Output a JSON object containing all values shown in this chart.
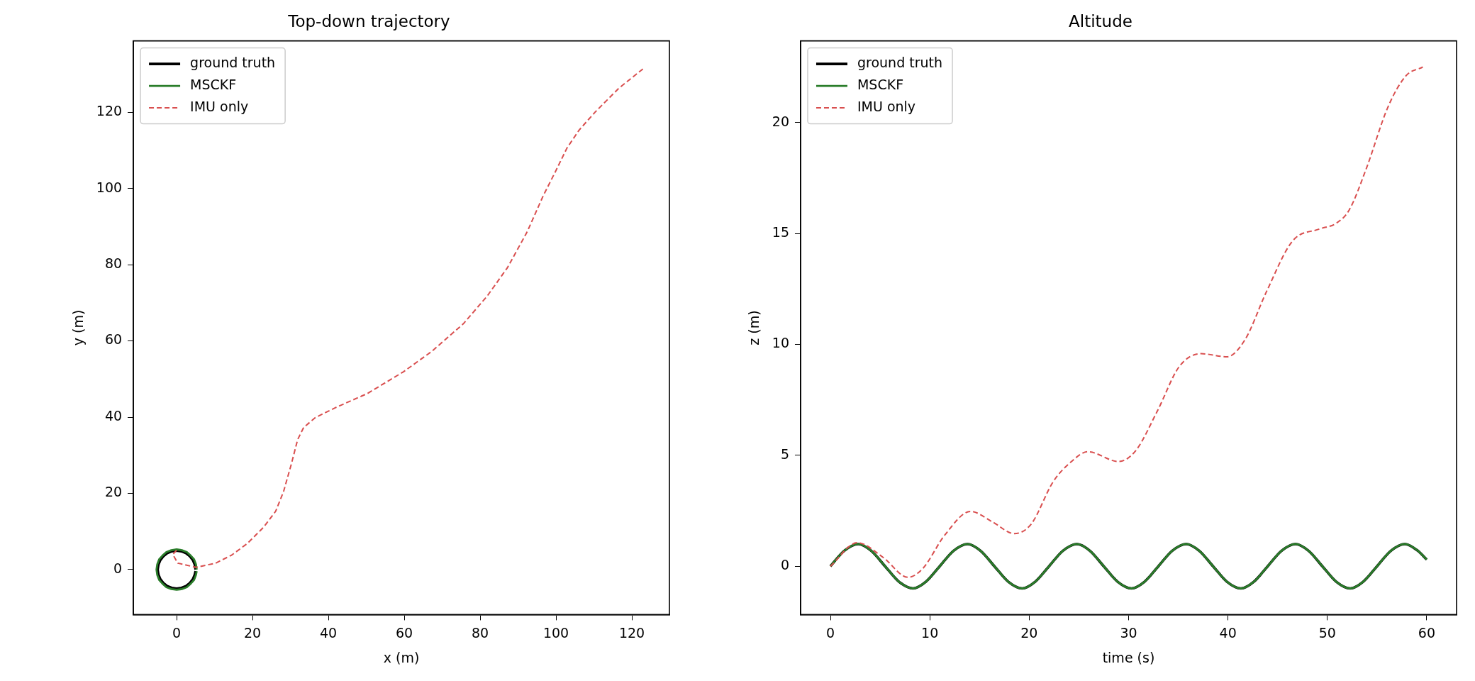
{
  "chart_data": [
    {
      "type": "line",
      "title": "Top-down trajectory",
      "xlabel": "x (m)",
      "ylabel": "y (m)",
      "xlim": [
        -11.4,
        129.9
      ],
      "ylim": [
        -11.8,
        138.7
      ],
      "xticks": [
        0,
        20,
        40,
        60,
        80,
        100,
        120
      ],
      "yticks": [
        0,
        20,
        40,
        60,
        80,
        100,
        120
      ],
      "grid": false,
      "legend": "top left",
      "series": [
        {
          "name": "ground truth",
          "color": "#000000",
          "line_style": "solid",
          "x": [
            5,
            4.8,
            4.3,
            3.5,
            2.5,
            1.3,
            0,
            -1.3,
            -2.5,
            -3.5,
            -4.3,
            -4.8,
            -5,
            -4.8,
            -4.3,
            -3.5,
            -2.5,
            -1.3,
            0,
            1.3,
            2.5,
            3.5,
            4.3,
            4.8,
            5
          ],
          "values": [
            0,
            1.3,
            2.5,
            3.5,
            4.3,
            4.8,
            5,
            4.8,
            4.3,
            3.5,
            2.5,
            1.3,
            0,
            -1.3,
            -2.5,
            -3.5,
            -4.3,
            -4.8,
            -5,
            -4.8,
            -4.3,
            -3.5,
            -2.5,
            -1.3,
            -0.4
          ]
        },
        {
          "name": "MSCKF",
          "color": "#2a7d2a",
          "line_style": "solid",
          "x": [
            5.3,
            5.1,
            4.6,
            3.7,
            2.7,
            1.4,
            0,
            -1.4,
            -2.7,
            -3.7,
            -4.6,
            -5.1,
            -5.3,
            -5.1,
            -4.6,
            -3.7,
            -2.7,
            -1.4,
            0,
            1.4,
            2.7,
            3.7,
            4.6,
            5.1,
            5.3
          ],
          "values": [
            0,
            1.4,
            2.7,
            3.7,
            4.6,
            5.1,
            5.3,
            5.1,
            4.6,
            3.7,
            2.7,
            1.4,
            0,
            -1.4,
            -2.7,
            -3.7,
            -4.6,
            -5.1,
            -5.3,
            -5.1,
            -4.6,
            -3.7,
            -2.7,
            -1.4,
            -0.4
          ]
        },
        {
          "name": "IMU only",
          "color": "#d94f4f",
          "line_style": "dashed",
          "x": [
            0,
            -1,
            0.3,
            5.1,
            10.3,
            14.5,
            18.7,
            22.9,
            26.1,
            28.2,
            30.3,
            31.9,
            33.5,
            36.6,
            41.9,
            50.3,
            59.8,
            67.2,
            75.6,
            81.9,
            87.2,
            92.4,
            96.6,
            99.8,
            102.9,
            106.1,
            110.3,
            116.6,
            123.5
          ],
          "values": [
            5.1,
            4,
            1.7,
            0.6,
            1.7,
            3.8,
            6.9,
            11.1,
            15.3,
            20.5,
            27.9,
            34.1,
            37.3,
            39.9,
            42.5,
            46.2,
            51.9,
            57.2,
            64.5,
            71.8,
            79.2,
            88.6,
            98,
            104.3,
            110.6,
            115.3,
            120,
            126.3,
            131.8
          ]
        }
      ]
    },
    {
      "type": "line",
      "title": "Altitude",
      "xlabel": "time (s)",
      "ylabel": "z (m)",
      "xlim": [
        -3,
        63
      ],
      "ylim": [
        -2.18,
        23.68
      ],
      "xticks": [
        0,
        10,
        20,
        30,
        40,
        50,
        60
      ],
      "yticks": [
        0,
        5,
        10,
        15,
        20
      ],
      "grid": false,
      "legend": "top left",
      "series": [
        {
          "name": "ground truth",
          "color": "#000000",
          "line_style": "solid",
          "x": [
            0,
            1.4,
            2.8,
            4.1,
            5.5,
            6.9,
            8.3,
            9.6,
            11,
            12.4,
            13.8,
            15.1,
            16.5,
            17.9,
            19.3,
            20.6,
            22,
            23.4,
            24.8,
            26.1,
            27.5,
            28.9,
            30.3,
            31.6,
            33,
            34.4,
            35.8,
            37.1,
            38.5,
            39.9,
            41.3,
            42.6,
            44,
            45.4,
            46.8,
            48.1,
            49.5,
            50.9,
            52.3,
            53.6,
            55,
            56.4,
            57.8,
            59.1,
            60
          ],
          "values": [
            0,
            0.7,
            1,
            0.7,
            0,
            -0.7,
            -1,
            -0.7,
            0,
            0.7,
            1,
            0.7,
            0,
            -0.7,
            -1,
            -0.7,
            0,
            0.7,
            1,
            0.7,
            0,
            -0.7,
            -1,
            -0.7,
            0,
            0.7,
            1,
            0.7,
            0,
            -0.7,
            -1,
            -0.7,
            0,
            0.7,
            1,
            0.7,
            0,
            -0.7,
            -1,
            -0.7,
            0,
            0.7,
            1,
            0.7,
            0.3
          ]
        },
        {
          "name": "MSCKF",
          "color": "#2a7d2a",
          "line_style": "solid",
          "x": [
            0,
            1.4,
            2.8,
            4.1,
            5.5,
            6.9,
            8.3,
            9.6,
            11,
            12.4,
            13.8,
            15.1,
            16.5,
            17.9,
            19.3,
            20.6,
            22,
            23.4,
            24.8,
            26.1,
            27.5,
            28.9,
            30.3,
            31.6,
            33,
            34.4,
            35.8,
            37.1,
            38.5,
            39.9,
            41.3,
            42.6,
            44,
            45.4,
            46.8,
            48.1,
            49.5,
            50.9,
            52.3,
            53.6,
            55,
            56.4,
            57.8,
            59.1,
            60
          ],
          "values": [
            0,
            0.7,
            1,
            0.7,
            0,
            -0.7,
            -1,
            -0.7,
            0,
            0.7,
            1,
            0.7,
            0,
            -0.7,
            -1,
            -0.7,
            0,
            0.7,
            1,
            0.7,
            0,
            -0.7,
            -1,
            -0.7,
            0,
            0.7,
            1,
            0.7,
            0,
            -0.7,
            -1,
            -0.7,
            0,
            0.7,
            1,
            0.7,
            0,
            -0.7,
            -1,
            -0.7,
            0,
            0.7,
            1,
            0.7,
            0.3
          ]
        },
        {
          "name": "IMU only",
          "color": "#d94f4f",
          "line_style": "dashed",
          "x": [
            0,
            2.7,
            5.3,
            7.8,
            9.3,
            11.5,
            14.1,
            16.3,
            18.5,
            20.2,
            22.4,
            24.2,
            25.9,
            29,
            30.7,
            32.9,
            35.1,
            37.3,
            39.9,
            41.7,
            43.9,
            46.5,
            49.2,
            50.9,
            52.2,
            53.9,
            56.1,
            57.9,
            59.6
          ],
          "values": [
            0,
            1.06,
            0.4,
            -0.5,
            -0.1,
            1.4,
            2.47,
            2,
            1.47,
            1.9,
            3.8,
            4.7,
            5.16,
            4.72,
            5.2,
            7,
            9,
            9.58,
            9.44,
            10.2,
            12.4,
            14.66,
            15.2,
            15.46,
            16.06,
            17.9,
            20.7,
            22.1,
            22.5
          ]
        }
      ]
    }
  ]
}
